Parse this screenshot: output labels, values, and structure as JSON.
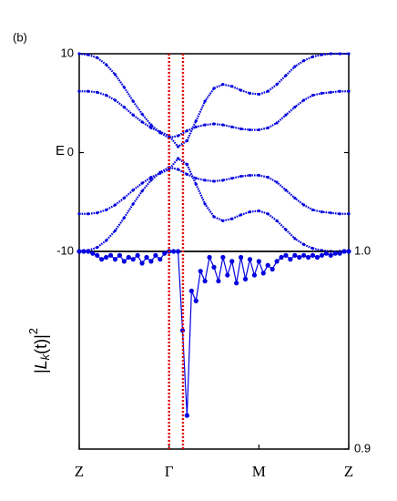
{
  "panel_label": "(b)",
  "reference_lines": {
    "x": [
      1,
      1.155
    ],
    "color": "#e00000"
  },
  "chart_data": [
    {
      "type": "line",
      "ylabel": "E",
      "xlim": [
        0,
        3
      ],
      "ylim": [
        -10,
        10
      ],
      "yticks": [
        -10,
        0,
        10
      ],
      "color": "#0000e0",
      "x": [
        0,
        0.1,
        0.2,
        0.3,
        0.4,
        0.5,
        0.6,
        0.7,
        0.8,
        0.9,
        1,
        1.1,
        1.2,
        1.3,
        1.4,
        1.5,
        1.6,
        1.7,
        1.8,
        1.9,
        2,
        2.1,
        2.2,
        2.3,
        2.4,
        2.5,
        2.6,
        2.7,
        2.8,
        2.9,
        3
      ],
      "series": [
        {
          "values": [
            10,
            9.9,
            9.6,
            8.9,
            7.9,
            6.6,
            5.2,
            3.9,
            2.8,
            2.0,
            1.5,
            1.7,
            2.2,
            2.6,
            2.8,
            2.9,
            2.8,
            2.6,
            2.4,
            2.3,
            2.3,
            2.5,
            3.0,
            3.8,
            4.6,
            5.3,
            5.8,
            6.0,
            6.1,
            6.2,
            6.2
          ]
        },
        {
          "values": [
            6.2,
            6.2,
            6.1,
            5.8,
            5.3,
            4.6,
            3.8,
            3.1,
            2.5,
            2.1,
            1.7,
            0.6,
            1.2,
            3.2,
            5.2,
            6.5,
            6.9,
            6.7,
            6.3,
            6.0,
            5.9,
            6.2,
            6.9,
            7.8,
            8.7,
            9.3,
            9.7,
            9.9,
            10,
            10,
            10
          ]
        },
        {
          "values": [
            -6.2,
            -6.2,
            -6.1,
            -5.8,
            -5.3,
            -4.6,
            -3.8,
            -3.1,
            -2.5,
            -2.1,
            -1.7,
            -0.6,
            -1.2,
            -3.2,
            -5.2,
            -6.5,
            -6.9,
            -6.7,
            -6.3,
            -6.0,
            -5.9,
            -6.2,
            -6.9,
            -7.8,
            -8.7,
            -9.3,
            -9.7,
            -9.9,
            -10,
            -10,
            -10
          ]
        },
        {
          "values": [
            -10,
            -9.9,
            -9.6,
            -8.9,
            -7.9,
            -6.6,
            -5.2,
            -3.9,
            -2.8,
            -2.0,
            -1.5,
            -1.7,
            -2.2,
            -2.6,
            -2.8,
            -2.9,
            -2.8,
            -2.6,
            -2.4,
            -2.3,
            -2.3,
            -2.5,
            -3.0,
            -3.8,
            -4.6,
            -5.3,
            -5.8,
            -6.0,
            -6.1,
            -6.2,
            -6.2
          ]
        }
      ]
    },
    {
      "type": "line",
      "ylabel": [
        "|",
        "L",
        "k",
        "(t)|",
        "2"
      ],
      "xlim": [
        0,
        3
      ],
      "ylim": [
        0.9,
        1.0
      ],
      "yticks": [
        {
          "value": 1.0,
          "label": "1.0"
        },
        {
          "value": 0.9,
          "label": "0.9"
        }
      ],
      "xticks": [
        {
          "value": 0,
          "label": "Z"
        },
        {
          "value": 1,
          "label": "Γ"
        },
        {
          "value": 2,
          "label": "M"
        },
        {
          "value": 3,
          "label": "Z"
        }
      ],
      "color": "#0000e0",
      "x": [
        0,
        0.05,
        0.1,
        0.15,
        0.2,
        0.25,
        0.3,
        0.35,
        0.4,
        0.45,
        0.5,
        0.55,
        0.6,
        0.65,
        0.7,
        0.75,
        0.8,
        0.85,
        0.9,
        0.95,
        1,
        1.05,
        1.1,
        1.15,
        1.2,
        1.25,
        1.3,
        1.35,
        1.4,
        1.45,
        1.5,
        1.55,
        1.6,
        1.65,
        1.7,
        1.75,
        1.8,
        1.85,
        1.9,
        1.95,
        2,
        2.05,
        2.1,
        2.15,
        2.2,
        2.25,
        2.3,
        2.35,
        2.4,
        2.45,
        2.5,
        2.55,
        2.6,
        2.65,
        2.7,
        2.75,
        2.8,
        2.85,
        2.9,
        2.95,
        3
      ],
      "values": [
        1.0,
        1.0,
        1.0,
        0.999,
        0.998,
        0.996,
        0.997,
        0.998,
        0.996,
        0.998,
        0.995,
        0.997,
        0.996,
        0.998,
        0.994,
        0.997,
        0.995,
        0.998,
        0.996,
        0.999,
        1.0,
        1.0,
        1.0,
        0.96,
        0.917,
        0.98,
        0.975,
        0.99,
        0.985,
        0.997,
        0.992,
        0.985,
        0.997,
        0.988,
        0.995,
        0.984,
        0.997,
        0.986,
        0.996,
        0.988,
        0.995,
        0.989,
        0.993,
        0.991,
        0.995,
        0.997,
        0.998,
        0.996,
        0.998,
        0.997,
        0.998,
        0.997,
        0.998,
        0.997,
        0.998,
        0.999,
        0.998,
        0.999,
        0.999,
        1.0,
        1.0
      ]
    }
  ]
}
